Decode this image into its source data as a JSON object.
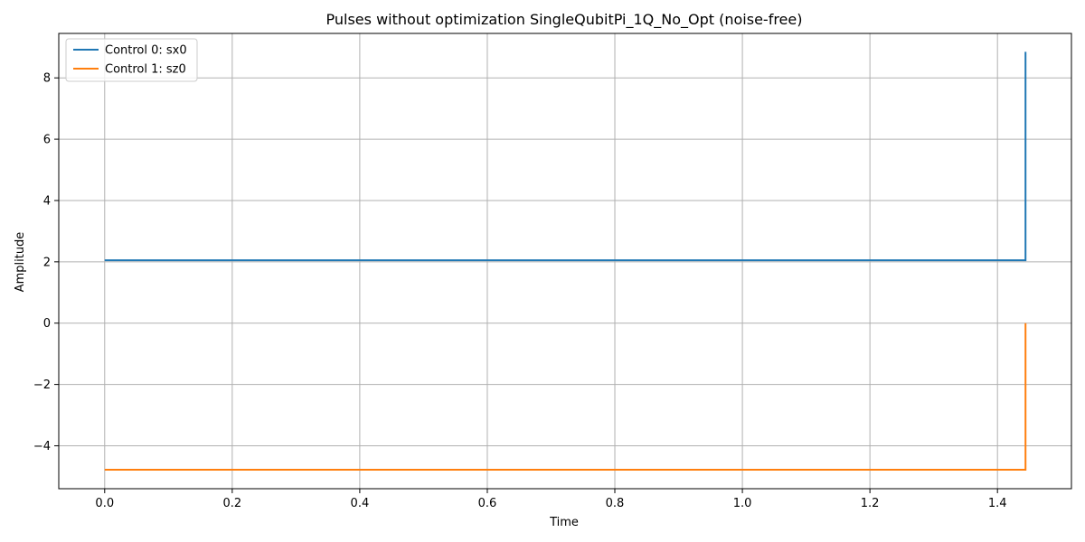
{
  "chart_data": {
    "type": "line",
    "title": "Pulses without optimization SingleQubitPi_1Q_No_Opt (noise-free)",
    "xlabel": "Time",
    "ylabel": "Amplitude",
    "xlim": [
      -0.072,
      1.516
    ],
    "ylim": [
      -5.4,
      9.45
    ],
    "x_ticks": [
      0.0,
      0.2,
      0.4,
      0.6,
      0.8,
      1.0,
      1.2,
      1.4
    ],
    "x_tick_labels": [
      "0.0",
      "0.2",
      "0.4",
      "0.6",
      "0.8",
      "1.0",
      "1.2",
      "1.4"
    ],
    "y_ticks": [
      -4,
      -2,
      0,
      2,
      4,
      6,
      8
    ],
    "y_tick_labels": [
      "−4",
      "−2",
      "0",
      "2",
      "4",
      "6",
      "8"
    ],
    "grid": true,
    "legend_position": "top-left",
    "series": [
      {
        "name": "Control 0: sx0",
        "color": "#1f77b4",
        "x": [
          0.0,
          1.444,
          1.444
        ],
        "y": [
          2.05,
          2.05,
          8.85
        ]
      },
      {
        "name": "Control 1: sz0",
        "color": "#ff7f0e",
        "x": [
          0.0,
          1.444,
          1.444
        ],
        "y": [
          -4.78,
          -4.78,
          0.0
        ]
      }
    ]
  }
}
